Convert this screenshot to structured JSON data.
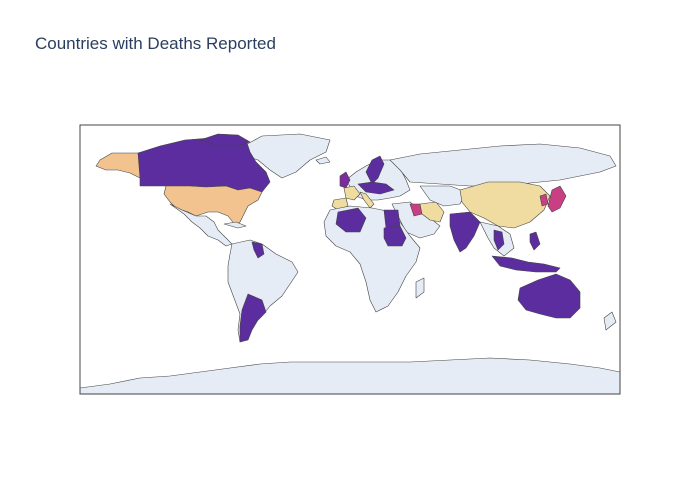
{
  "title": "Countries with Deaths Reported",
  "colors": {
    "background_land": "#e5ecf6",
    "ocean": "#ffffff",
    "border": "#444444",
    "title_text": "#2a3f5f",
    "scale_low": "#5c2d9e",
    "scale_mid_low": "#7b2d9e",
    "scale_mid": "#c83f84",
    "scale_mid_high": "#f2c38e",
    "scale_high": "#f0dca0"
  },
  "map": {
    "projection": "equirectangular",
    "highlighted_countries": [
      {
        "name": "United States",
        "color": "#f2c38e"
      },
      {
        "name": "Canada",
        "color": "#5c2d9e"
      },
      {
        "name": "Argentina",
        "color": "#5c2d9e"
      },
      {
        "name": "United Kingdom",
        "color": "#7b2d9e"
      },
      {
        "name": "France",
        "color": "#f0dca0"
      },
      {
        "name": "Spain",
        "color": "#f0dca0"
      },
      {
        "name": "Italy",
        "color": "#f0dca0"
      },
      {
        "name": "Sweden",
        "color": "#5c2d9e"
      },
      {
        "name": "Russia",
        "color": "#e5ecf6"
      },
      {
        "name": "Iran",
        "color": "#f0dca0"
      },
      {
        "name": "Iraq",
        "color": "#c83f84"
      },
      {
        "name": "China",
        "color": "#f0dca0"
      },
      {
        "name": "Japan",
        "color": "#c83f84"
      },
      {
        "name": "South Korea",
        "color": "#c83f84"
      },
      {
        "name": "India",
        "color": "#5c2d9e"
      },
      {
        "name": "Egypt",
        "color": "#5c2d9e"
      },
      {
        "name": "Algeria",
        "color": "#5c2d9e"
      },
      {
        "name": "Sudan",
        "color": "#5c2d9e"
      },
      {
        "name": "Thailand",
        "color": "#5c2d9e"
      },
      {
        "name": "Philippines",
        "color": "#5c2d9e"
      },
      {
        "name": "Indonesia",
        "color": "#5c2d9e"
      },
      {
        "name": "Australia",
        "color": "#5c2d9e"
      },
      {
        "name": "Venezuela",
        "color": "#5c2d9e"
      }
    ]
  }
}
